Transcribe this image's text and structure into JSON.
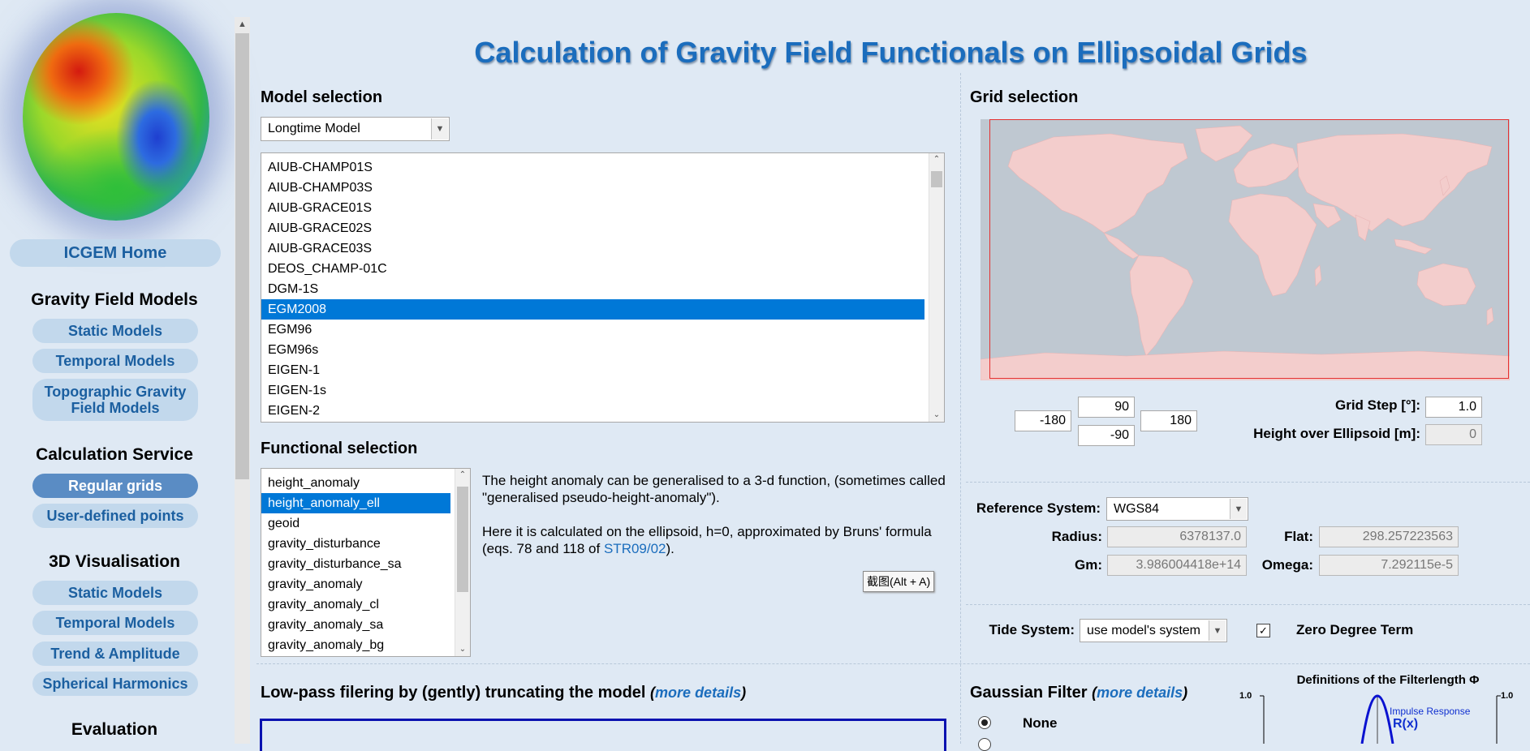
{
  "sidebar": {
    "home": "ICGEM Home",
    "sections": [
      {
        "title": "Gravity Field Models",
        "items": [
          "Static Models",
          "Temporal Models",
          "Topographic Gravity Field Models"
        ]
      },
      {
        "title": "Calculation Service",
        "items": [
          "Regular grids",
          "User-defined points"
        ]
      },
      {
        "title": "3D Visualisation",
        "items": [
          "Static Models",
          "Temporal Models",
          "Trend & Amplitude",
          "Spherical Harmonics"
        ]
      },
      {
        "title": "Evaluation",
        "items": []
      }
    ],
    "active_item": "Regular grids"
  },
  "page_title": "Calculation of Gravity Field Functionals on Ellipsoidal Grids",
  "model_selection": {
    "title": "Model selection",
    "type_select": "Longtime Model",
    "models": [
      "AIUB-CHAMP01S",
      "AIUB-CHAMP03S",
      "AIUB-GRACE01S",
      "AIUB-GRACE02S",
      "AIUB-GRACE03S",
      "DEOS_CHAMP-01C",
      "DGM-1S",
      "EGM2008",
      "EGM96",
      "EGM96s",
      "EIGEN-1",
      "EIGEN-1s",
      "EIGEN-2"
    ],
    "selected": "EGM2008"
  },
  "functional_selection": {
    "title": "Functional selection",
    "functionals": [
      "height_anomaly",
      "height_anomaly_ell",
      "geoid",
      "gravity_disturbance",
      "gravity_disturbance_sa",
      "gravity_anomaly",
      "gravity_anomaly_cl",
      "gravity_anomaly_sa",
      "gravity_anomaly_bg"
    ],
    "selected": "height_anomaly_ell",
    "desc_p1": "The height anomaly can be generalised to a 3-d function, (sometimes called \"generalised pseudo-height-anomaly\").",
    "desc_p2_pre": "Here it is calculated on the ellipsoid, h=0, approximated by Bruns' formula (eqs. 78 and 118 of ",
    "desc_p2_link": "STR09/02",
    "desc_p2_post": ").",
    "tooltip": "截图(Alt + A)"
  },
  "grid_selection": {
    "title": "Grid selection",
    "lat_max": "90",
    "lat_min": "-90",
    "lon_min": "-180",
    "lon_max": "180",
    "grid_step_label": "Grid Step [°]:",
    "grid_step": "1.0",
    "height_label": "Height over Ellipsoid [m]:",
    "height": "0"
  },
  "reference": {
    "label": "Reference System:",
    "system": "WGS84",
    "radius_label": "Radius:",
    "radius": "6378137.0",
    "flat_label": "Flat:",
    "flat": "298.257223563",
    "gm_label": "Gm:",
    "gm": "3.986004418e+14",
    "omega_label": "Omega:",
    "omega": "7.292115e-5"
  },
  "tide": {
    "label": "Tide System:",
    "system": "use model's system",
    "zero_degree_label": "Zero Degree Term",
    "zero_degree_checked": true
  },
  "lowpass": {
    "title": "Low-pass filering by (gently) truncating the model",
    "more": "more details"
  },
  "gaussian": {
    "title": "Gaussian Filter",
    "more": "more details",
    "option_none": "None",
    "def_title": "Definitions of the Filterlength Φ",
    "axis_left": "1.0",
    "axis_right": "1.0",
    "impulse_label": "Impulse Response",
    "rx_label": "R(x)"
  },
  "colors": {
    "accent": "#1b6dbd",
    "selection": "#0078d7",
    "active_nav": "#5a8cc4"
  }
}
